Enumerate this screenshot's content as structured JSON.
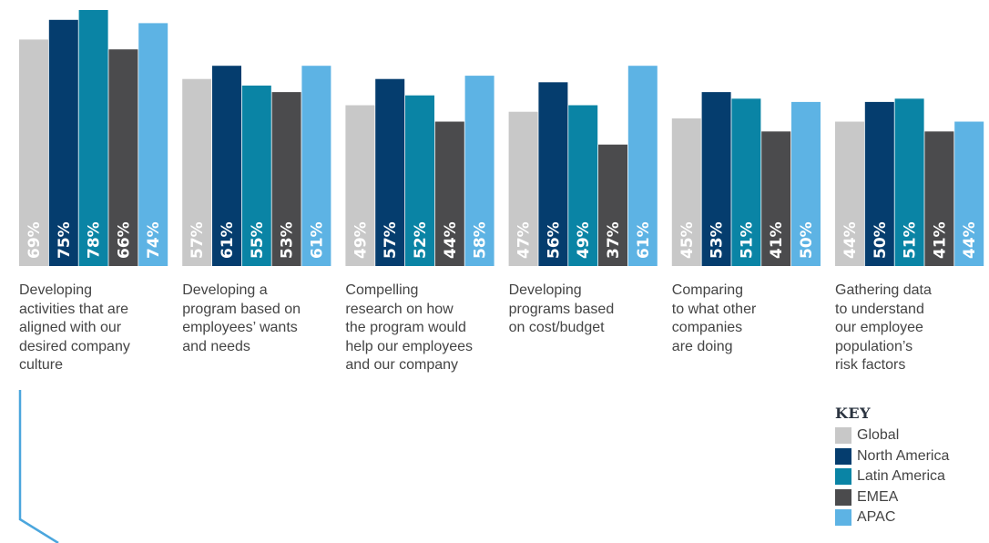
{
  "chart_data": {
    "type": "bar",
    "categories": [
      "Developing activities that are aligned with our desired company culture",
      "Developing a program based on employees’ wants and needs",
      "Compelling research on how the program would help our employees and our company",
      "Developing programs based on cost/budget",
      "Comparing to what other companies are doing",
      "Gathering data to understand our employee population’s risk factors"
    ],
    "category_lines": [
      [
        "Developing",
        "activities that are",
        "aligned with our",
        "desired company",
        "culture"
      ],
      [
        "Developing a",
        "program based on",
        "employees’ wants",
        "and needs"
      ],
      [
        "Compelling",
        "research on how",
        "the program would",
        "help our employees",
        "and our company"
      ],
      [
        "Developing",
        "programs based",
        "on cost/budget"
      ],
      [
        "Comparing",
        "to what other",
        "companies",
        "are doing"
      ],
      [
        "Gathering data",
        "to understand",
        "our employee",
        "population’s",
        "risk factors"
      ]
    ],
    "series": [
      {
        "name": "Global",
        "color": "#c8c8c8",
        "values": [
          69,
          57,
          49,
          47,
          45,
          44
        ]
      },
      {
        "name": "North America",
        "color": "#053d6e",
        "values": [
          75,
          61,
          57,
          56,
          53,
          50
        ]
      },
      {
        "name": "Latin America",
        "color": "#0a84a5",
        "values": [
          78,
          55,
          52,
          49,
          51,
          51
        ]
      },
      {
        "name": "EMEA",
        "color": "#4b4b4d",
        "values": [
          66,
          53,
          44,
          37,
          41,
          41
        ]
      },
      {
        "name": "APAC",
        "color": "#5db3e4",
        "values": [
          74,
          61,
          58,
          61,
          50,
          44
        ]
      }
    ],
    "value_suffix": "%",
    "ylim": [
      0,
      78
    ],
    "legend_title": "KEY",
    "legend_position": "bottom-right",
    "grid": false
  },
  "accent_color": "#4ba6dd"
}
